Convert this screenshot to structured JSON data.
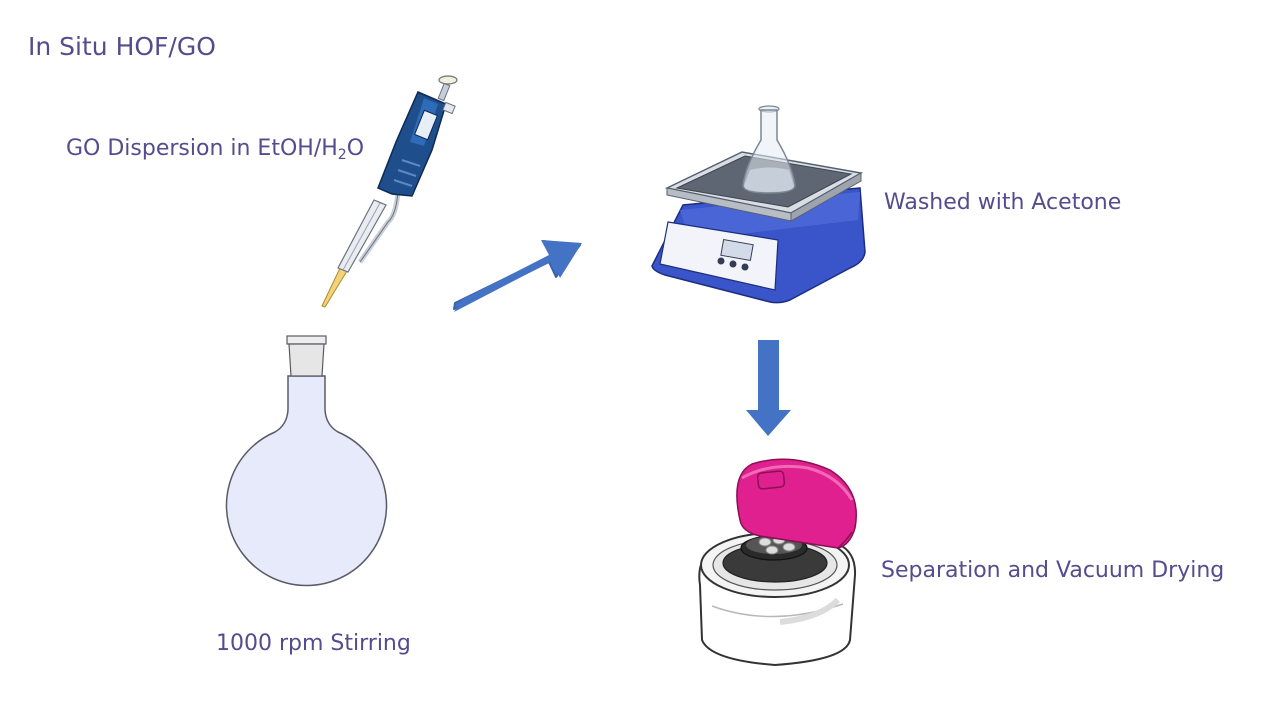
{
  "title": "In Situ HOF/GO",
  "steps": {
    "go_dispersion": {
      "label_main": "GO Dispersion in EtOH/H",
      "label_sub": "2",
      "label_tail": "O"
    },
    "stirring": {
      "label": "1000 rpm Stirring"
    },
    "washing": {
      "label": "Washed with Acetone"
    },
    "separation": {
      "label": "Separation and Vacuum Drying"
    }
  },
  "colors": {
    "text": "#554c8e",
    "arrow": "#4472c4",
    "flask_fill": "#e6eafb",
    "pipette": "#1f4e8c",
    "stirrer": "#3a55c9",
    "centrifuge_lid": "#e0208e"
  },
  "icons": [
    "pipette-icon",
    "round-bottom-flask-icon",
    "magnetic-stirrer-icon",
    "erlenmeyer-flask-icon",
    "centrifuge-icon"
  ]
}
